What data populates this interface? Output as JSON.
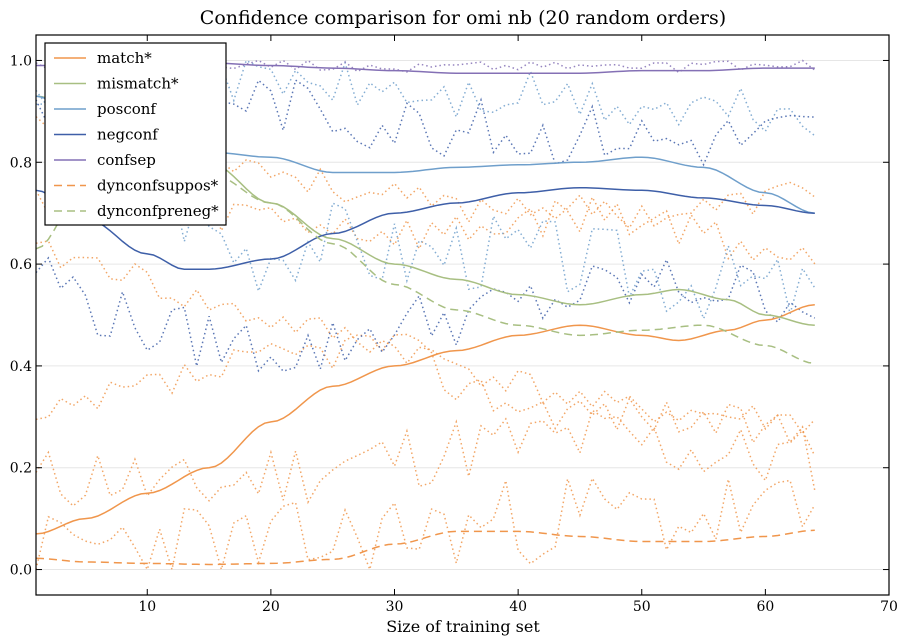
{
  "chart_data": {
    "type": "line",
    "title": "Confidence comparison for omi nb (20 random orders)",
    "xlabel": "Size of training set",
    "ylabel": "",
    "xlim": [
      1,
      70
    ],
    "ylim": [
      -0.05,
      1.05
    ],
    "xticks": [
      10,
      20,
      30,
      40,
      50,
      60,
      70
    ],
    "yticks": [
      0.0,
      0.2,
      0.4,
      0.6,
      0.8,
      1.0
    ],
    "grid": "horizontal",
    "legend_position": "top-left",
    "series": [
      {
        "name": "match*",
        "style": "solid",
        "color": "#f0964c",
        "x": [
          1,
          5,
          10,
          15,
          20,
          25,
          30,
          35,
          40,
          45,
          50,
          53,
          57,
          60,
          64
        ],
        "y": [
          0.07,
          0.1,
          0.15,
          0.2,
          0.29,
          0.36,
          0.4,
          0.43,
          0.46,
          0.48,
          0.46,
          0.45,
          0.47,
          0.49,
          0.52
        ]
      },
      {
        "name": "mismatch*",
        "style": "solid",
        "color": "#a8bf82",
        "x": [
          1,
          5,
          10,
          15,
          20,
          25,
          30,
          35,
          40,
          45,
          50,
          53,
          57,
          60,
          64
        ],
        "y": [
          0.93,
          0.9,
          0.86,
          0.8,
          0.72,
          0.65,
          0.6,
          0.57,
          0.54,
          0.52,
          0.54,
          0.55,
          0.53,
          0.5,
          0.48
        ]
      },
      {
        "name": "posconf",
        "style": "solid",
        "color": "#6f9fcb",
        "x": [
          1,
          5,
          10,
          15,
          20,
          25,
          30,
          35,
          40,
          45,
          50,
          55,
          60,
          64
        ],
        "y": [
          0.93,
          0.88,
          0.83,
          0.82,
          0.81,
          0.78,
          0.78,
          0.79,
          0.795,
          0.8,
          0.81,
          0.79,
          0.74,
          0.7
        ]
      },
      {
        "name": "negconf",
        "style": "solid",
        "color": "#3e5fa8",
        "x": [
          1,
          5,
          10,
          13,
          15,
          20,
          25,
          30,
          35,
          40,
          45,
          50,
          55,
          60,
          64
        ],
        "y": [
          0.745,
          0.69,
          0.62,
          0.59,
          0.59,
          0.61,
          0.66,
          0.7,
          0.72,
          0.74,
          0.75,
          0.745,
          0.73,
          0.715,
          0.7
        ]
      },
      {
        "name": "confsep",
        "style": "solid",
        "color": "#8470b5",
        "x": [
          1,
          5,
          10,
          15,
          20,
          25,
          30,
          35,
          40,
          45,
          50,
          55,
          60,
          64
        ],
        "y": [
          0.99,
          0.99,
          0.995,
          0.995,
          0.99,
          0.985,
          0.98,
          0.975,
          0.975,
          0.975,
          0.98,
          0.98,
          0.985,
          0.985
        ]
      },
      {
        "name": "dynconfsuppos*",
        "style": "dashed",
        "color": "#f0964c",
        "x": [
          1,
          5,
          10,
          15,
          20,
          25,
          30,
          35,
          40,
          45,
          50,
          55,
          60,
          64
        ],
        "y": [
          0.022,
          0.015,
          0.012,
          0.01,
          0.012,
          0.02,
          0.05,
          0.075,
          0.075,
          0.065,
          0.055,
          0.055,
          0.065,
          0.077
        ]
      },
      {
        "name": "dynconfpreneg*",
        "style": "dashed",
        "color": "#a8bf82",
        "x": [
          1,
          5,
          10,
          15,
          20,
          25,
          30,
          35,
          40,
          45,
          50,
          55,
          60,
          64
        ],
        "y": [
          0.63,
          0.75,
          0.8,
          0.78,
          0.72,
          0.64,
          0.56,
          0.51,
          0.48,
          0.46,
          0.47,
          0.48,
          0.44,
          0.405
        ]
      }
    ],
    "dotted_series": [
      {
        "color": "#f0964c",
        "base": [
          0.17,
          0.19,
          0.15,
          0.18,
          0.2,
          0.22,
          0.24,
          0.25,
          0.26,
          0.24,
          0.22,
          0.22
        ],
        "amp": 0.07,
        "seed": 11
      },
      {
        "color": "#f0964c",
        "base": [
          0.02,
          0.05,
          0.06,
          0.04,
          0.05,
          0.07,
          0.08,
          0.1,
          0.11,
          0.1,
          0.11,
          0.1
        ],
        "amp": 0.09,
        "seed": 23
      },
      {
        "color": "#f0964c",
        "base": [
          0.28,
          0.33,
          0.37,
          0.4,
          0.43,
          0.45,
          0.36,
          0.32,
          0.31,
          0.3,
          0.28,
          0.26
        ],
        "amp": 0.04,
        "seed": 37
      },
      {
        "color": "#f0964c",
        "base": [
          0.62,
          0.6,
          0.54,
          0.5,
          0.47,
          0.44,
          0.4,
          0.36,
          0.32,
          0.31,
          0.3,
          0.29
        ],
        "amp": 0.03,
        "seed": 41
      },
      {
        "color": "#f0964c",
        "base": [
          0.9,
          0.88,
          0.84,
          0.8,
          0.76,
          0.73,
          0.71,
          0.72,
          0.7,
          0.7,
          0.72,
          0.75
        ],
        "amp": 0.03,
        "seed": 53
      },
      {
        "color": "#f0964c",
        "base": [
          0.74,
          0.72,
          0.7,
          0.7,
          0.68,
          0.66,
          0.66,
          0.69,
          0.7,
          0.68,
          0.64,
          0.6
        ],
        "amp": 0.04,
        "seed": 59
      },
      {
        "color": "#6f9fcb",
        "base": [
          0.88,
          0.84,
          0.72,
          0.62,
          0.66,
          0.62,
          0.63,
          0.62,
          0.6,
          0.58,
          0.56,
          0.54
        ],
        "amp": 0.08,
        "seed": 67
      },
      {
        "color": "#6f9fcb",
        "base": [
          0.96,
          0.95,
          0.96,
          0.97,
          0.95,
          0.94,
          0.92,
          0.93,
          0.91,
          0.9,
          0.9,
          0.89
        ],
        "amp": 0.05,
        "seed": 71
      },
      {
        "color": "#3e5fa8",
        "base": [
          0.6,
          0.5,
          0.46,
          0.44,
          0.43,
          0.48,
          0.5,
          0.52,
          0.55,
          0.56,
          0.55,
          0.53
        ],
        "amp": 0.06,
        "seed": 79
      },
      {
        "color": "#3e5fa8",
        "base": [
          0.92,
          0.93,
          0.94,
          0.93,
          0.9,
          0.88,
          0.87,
          0.85,
          0.86,
          0.84,
          0.85,
          0.86
        ],
        "amp": 0.06,
        "seed": 83
      },
      {
        "color": "#8470b5",
        "base": [
          0.99,
          0.995,
          0.99,
          0.995,
          0.99,
          0.985,
          0.99,
          0.99,
          0.99,
          0.985,
          0.99,
          0.99
        ],
        "amp": 0.01,
        "seed": 89
      }
    ],
    "legend": [
      "match*",
      "mismatch*",
      "posconf",
      "negconf",
      "confsep",
      "dynconfsuppos*",
      "dynconfpreneg*"
    ]
  }
}
